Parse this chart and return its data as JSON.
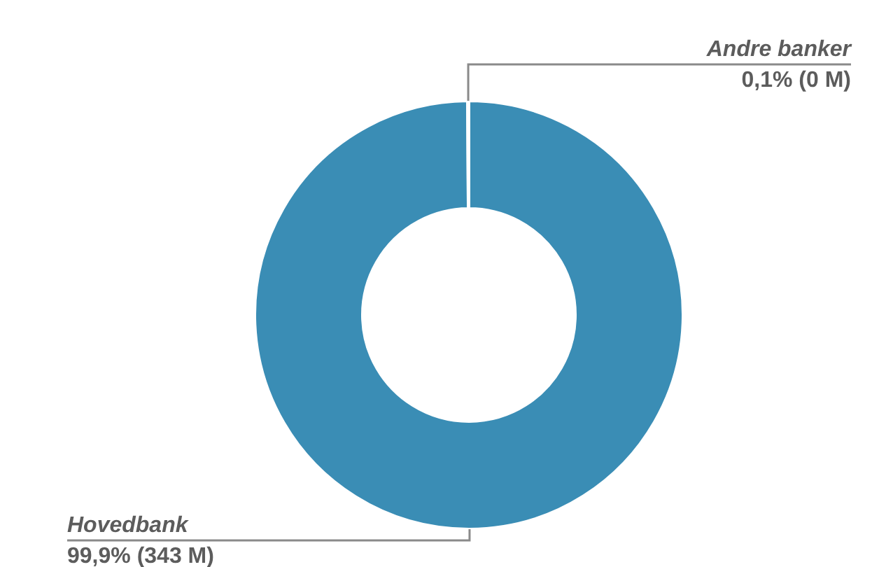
{
  "chart_data": {
    "type": "donut",
    "categories": [
      "Hovedbank",
      "Andre banker"
    ],
    "values": [
      99.9,
      0.1
    ],
    "colors": [
      "#3a8db5",
      "#f4f4f4"
    ],
    "value_labels": [
      "99,9% (343 M)",
      "0,1% (0 M)"
    ],
    "legend": false
  }
}
